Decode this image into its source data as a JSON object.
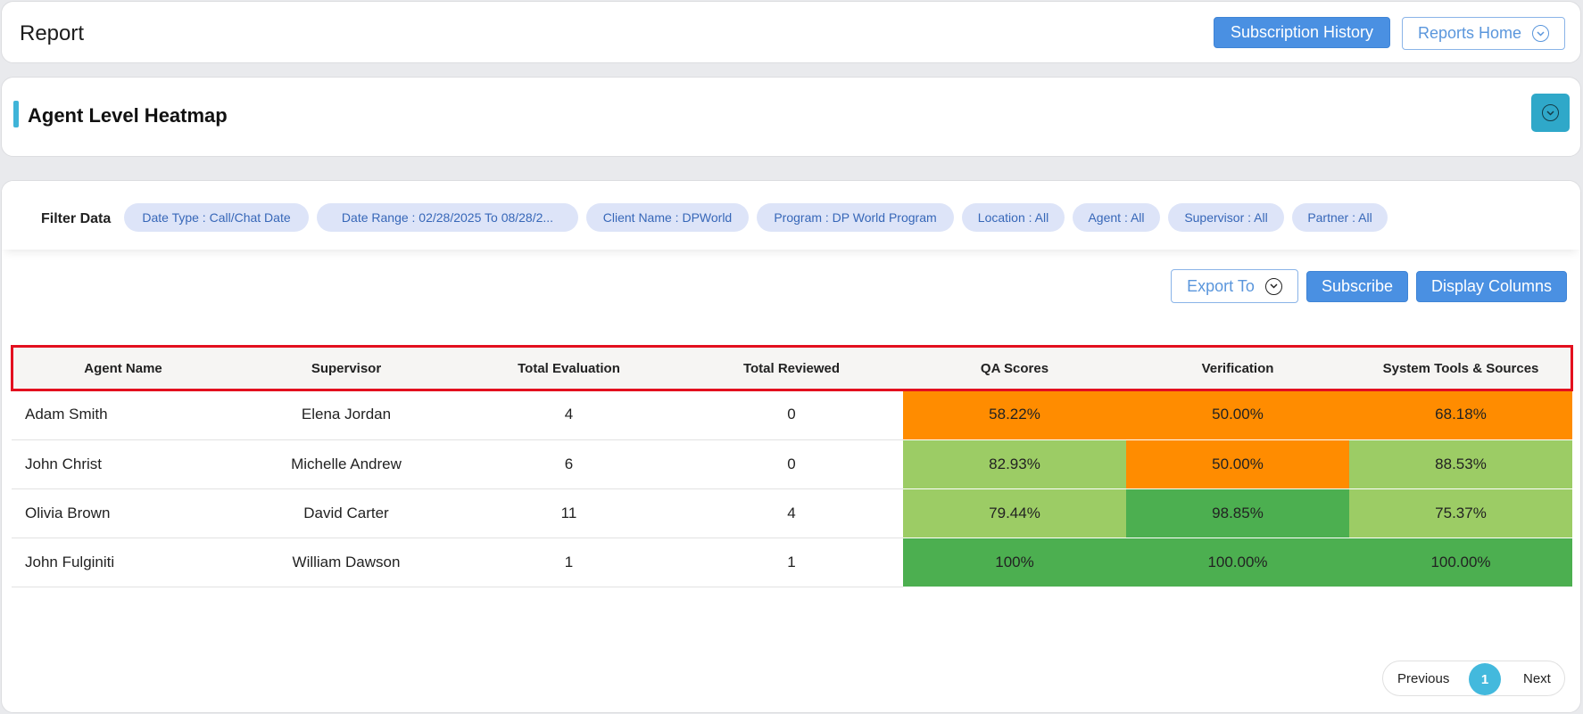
{
  "header": {
    "title": "Report",
    "subscription_history_label": "Subscription History",
    "reports_home_label": "Reports Home"
  },
  "section": {
    "title": "Agent Level Heatmap"
  },
  "filters": {
    "label": "Filter Data",
    "chips": [
      "Date Type : Call/Chat Date",
      "Date Range : 02/28/2025 To 08/28/2...",
      "Client Name : DPWorld",
      "Program : DP World Program",
      "Location : All",
      "Agent : All",
      "Supervisor : All",
      "Partner : All"
    ]
  },
  "actions": {
    "export_label": "Export To",
    "subscribe_label": "Subscribe",
    "display_columns_label": "Display Columns"
  },
  "table": {
    "columns": [
      "Agent Name",
      "Supervisor",
      "Total Evaluation",
      "Total Reviewed",
      "QA Scores",
      "Verification",
      "System Tools & Sources"
    ],
    "rows": [
      {
        "agent": "Adam Smith",
        "supervisor": "Elena Jordan",
        "total_evaluation": "4",
        "total_reviewed": "0",
        "qa": "58.22%",
        "verification": "50.00%",
        "tools": "68.18%"
      },
      {
        "agent": "John Christ",
        "supervisor": "Michelle Andrew",
        "total_evaluation": "6",
        "total_reviewed": "0",
        "qa": "82.93%",
        "verification": "50.00%",
        "tools": "88.53%"
      },
      {
        "agent": "Olivia Brown",
        "supervisor": "David Carter",
        "total_evaluation": "11",
        "total_reviewed": "4",
        "qa": "79.44%",
        "verification": "98.85%",
        "tools": "75.37%"
      },
      {
        "agent": "John Fulginiti",
        "supervisor": "William Dawson",
        "total_evaluation": "1",
        "total_reviewed": "1",
        "qa": "100%",
        "verification": "100.00%",
        "tools": "100.00%"
      }
    ],
    "heat_colors": [
      [
        "#ff8c00",
        "#ff8c00",
        "#ff8c00"
      ],
      [
        "#9ccc65",
        "#ff8c00",
        "#9ccc65"
      ],
      [
        "#9ccc65",
        "#4caf50",
        "#9ccc65"
      ],
      [
        "#4caf50",
        "#4caf50",
        "#4caf50"
      ]
    ]
  },
  "pagination": {
    "previous_label": "Previous",
    "current_page": "1",
    "next_label": "Next"
  },
  "colors": {
    "primary": "#4a90e2",
    "accent": "#3fb4d8",
    "highlight_border": "#e3101f",
    "heat_low": "#ff8c00",
    "heat_mid": "#9ccc65",
    "heat_high": "#4caf50"
  }
}
